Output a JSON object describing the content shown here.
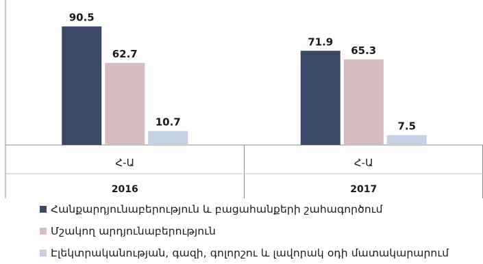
{
  "chart_data": {
    "type": "bar",
    "categories": [
      {
        "region": "Հ-Ա",
        "year": "2016"
      },
      {
        "region": "Հ-Ա",
        "year": "2017"
      }
    ],
    "series": [
      {
        "name": "Հանքարդյունաբերություն և բացահանքերի շահագործում",
        "color": "#3b4a66",
        "values": [
          90.5,
          71.9
        ]
      },
      {
        "name": "Մշակող արդյունաբերություն",
        "color": "#d6bcbf",
        "values": [
          62.7,
          65.3
        ]
      },
      {
        "name": "Էլեկտրականության, գազի, գոլորշու և լավորակ օդի մատակարարում",
        "color": "#c5d1e3",
        "values": [
          10.7,
          7.5
        ]
      }
    ],
    "value_labels": [
      [
        "90.5",
        "71.9"
      ],
      [
        "62.7",
        "65.3"
      ],
      [
        "10.7",
        "7.5"
      ]
    ],
    "ylim": [
      0,
      95
    ],
    "grid": false,
    "legend_position": "bottom"
  }
}
